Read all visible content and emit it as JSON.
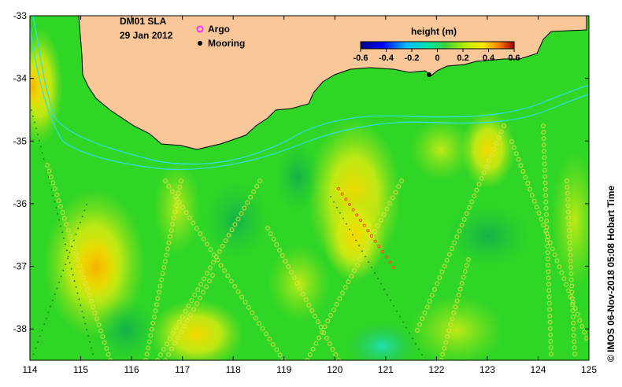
{
  "map": {
    "product": "DM01 SLA",
    "date": "29 Jan 2012",
    "x_ticks": [
      "114",
      "115",
      "116",
      "117",
      "118",
      "119",
      "120",
      "121",
      "122",
      "123",
      "124",
      "125"
    ],
    "y_ticks": [
      "-33",
      "-34",
      "-35",
      "-36",
      "-37",
      "-38"
    ],
    "lon_range": [
      114,
      125
    ],
    "lat_range": [
      -38.5,
      -33
    ],
    "colors": {
      "land": "#fac898",
      "field_base": "#2fd626",
      "contour": "#33dde6",
      "argo": "#ff33ff",
      "mooring": "#000000"
    }
  },
  "legend": {
    "argo_label": "Argo",
    "mooring_label": "Mooring"
  },
  "colorbar": {
    "title": "height (m)",
    "labels": [
      "-0.6",
      "-0.4",
      "-0.2",
      "0",
      "0.2",
      "0.4",
      "0.6"
    ],
    "range": [
      -0.6,
      0.6
    ]
  },
  "credit": "© IMOS 06-Nov-2018 05:08 Hobart Time"
}
